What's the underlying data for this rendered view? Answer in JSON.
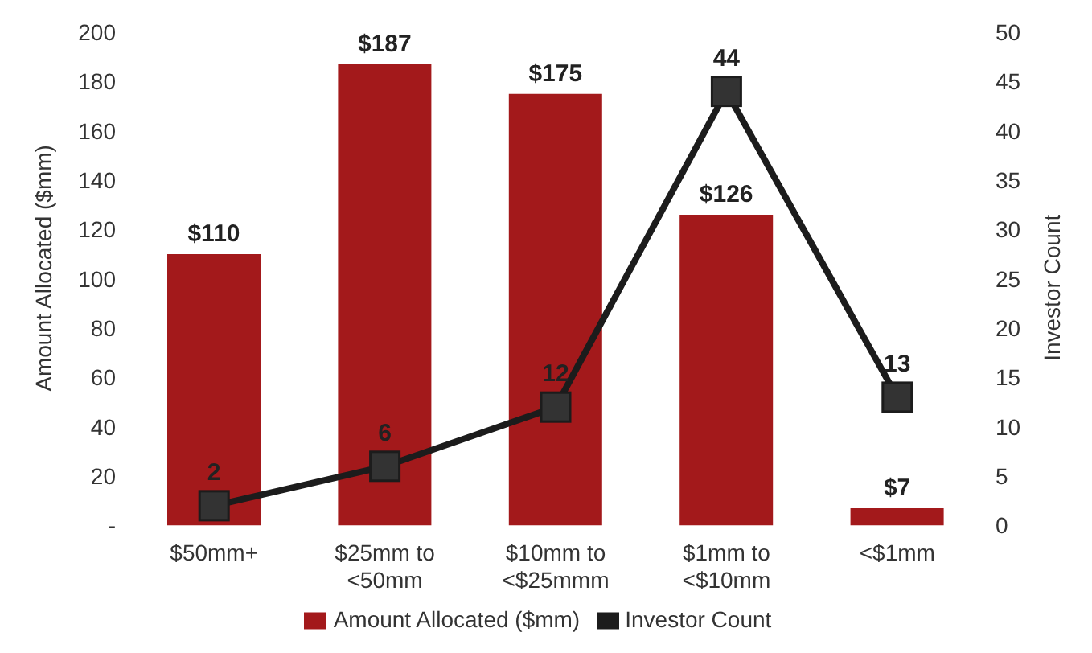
{
  "chart_data": {
    "type": "bar",
    "categories": [
      "$50mm+",
      "$25mm to <50mm",
      "$10mm to <$25mmm",
      "$1mm to <$10mm",
      "<$1mm"
    ],
    "series": [
      {
        "name": "Amount Allocated ($mm)",
        "color": "#a3191b",
        "values": [
          110,
          187,
          175,
          126,
          7
        ],
        "value_labels": [
          "$110",
          "$187",
          "$175",
          "$126",
          "$7"
        ]
      },
      {
        "name": "Investor Count",
        "type": "line",
        "axis": "y2",
        "color": "#1c1c1c",
        "marker": "square",
        "values": [
          2,
          6,
          12,
          44,
          13
        ],
        "value_labels": [
          "2",
          "6",
          "12",
          "44",
          "13"
        ]
      }
    ],
    "ylabel": "Amount Allocated ($mm)",
    "y2label": "Investor Count",
    "ylim": [
      0,
      200
    ],
    "yticks": [
      {
        "value": 0,
        "label": "-"
      },
      20,
      40,
      60,
      80,
      100,
      120,
      140,
      160,
      180,
      200
    ],
    "y2lim": [
      0,
      50
    ],
    "y2ticks": [
      0,
      5,
      10,
      15,
      20,
      25,
      30,
      35,
      40,
      45,
      50
    ],
    "grid": false,
    "legend": "bottom"
  }
}
